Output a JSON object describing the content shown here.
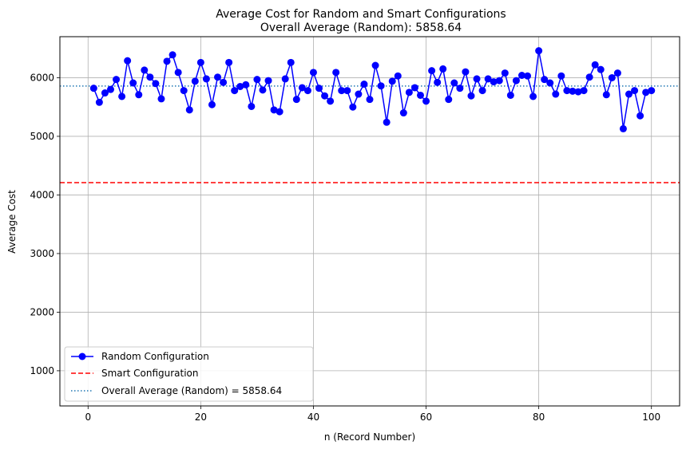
{
  "chart_data": {
    "type": "line",
    "title": "Average Cost for Random and Smart Configurations",
    "subtitle": "Overall Average (Random): 5858.64",
    "xlabel": "n (Record Number)",
    "ylabel": "Average Cost",
    "xlim": [
      -5,
      105
    ],
    "ylim": [
      400,
      6700
    ],
    "xticks": [
      0,
      20,
      40,
      60,
      80,
      100
    ],
    "yticks": [
      1000,
      2000,
      3000,
      4000,
      5000,
      6000
    ],
    "grid": true,
    "legend_position": "lower-left",
    "series": [
      {
        "name": "Random Configuration",
        "style": "line-markers",
        "color": "#0000ff",
        "x": [
          1,
          2,
          3,
          4,
          5,
          6,
          7,
          8,
          9,
          10,
          11,
          12,
          13,
          14,
          15,
          16,
          17,
          18,
          19,
          20,
          21,
          22,
          23,
          24,
          25,
          26,
          27,
          28,
          29,
          30,
          31,
          32,
          33,
          34,
          35,
          36,
          37,
          38,
          39,
          40,
          41,
          42,
          43,
          44,
          45,
          46,
          47,
          48,
          49,
          50,
          51,
          52,
          53,
          54,
          55,
          56,
          57,
          58,
          59,
          60,
          61,
          62,
          63,
          64,
          65,
          66,
          67,
          68,
          69,
          70,
          71,
          72,
          73,
          74,
          75,
          76,
          77,
          78,
          79,
          80,
          81,
          82,
          83,
          84,
          85,
          86,
          87,
          88,
          89,
          90,
          91,
          92,
          93,
          94,
          95,
          96,
          97,
          98,
          99,
          100
        ],
        "y": [
          5820,
          5580,
          5740,
          5800,
          5970,
          5680,
          6290,
          5910,
          5710,
          6130,
          6010,
          5900,
          5640,
          6280,
          6390,
          6090,
          5780,
          5450,
          5940,
          6260,
          5980,
          5540,
          6010,
          5920,
          6260,
          5780,
          5850,
          5880,
          5510,
          5970,
          5790,
          5950,
          5450,
          5420,
          5980,
          6260,
          5630,
          5830,
          5780,
          6090,
          5820,
          5690,
          5600,
          6090,
          5780,
          5780,
          5500,
          5720,
          5890,
          5630,
          6210,
          5860,
          5240,
          5940,
          6030,
          5400,
          5750,
          5830,
          5700,
          5600,
          6120,
          5920,
          6150,
          5630,
          5910,
          5820,
          6100,
          5690,
          5980,
          5780,
          5980,
          5930,
          5950,
          6080,
          5700,
          5950,
          6040,
          6030,
          5680,
          6460,
          5970,
          5910,
          5720,
          6030,
          5780,
          5770,
          5760,
          5780,
          6010,
          6220,
          6140,
          5710,
          6000,
          6080,
          5130,
          5720,
          5780,
          5350,
          5750,
          5780
        ]
      },
      {
        "name": "Smart Configuration",
        "style": "dashed",
        "color": "#ff0000",
        "value": 4210
      },
      {
        "name": "Overall Average (Random) = 5858.64",
        "style": "dotted",
        "color": "#1f77b4",
        "value": 5858.64
      }
    ]
  }
}
